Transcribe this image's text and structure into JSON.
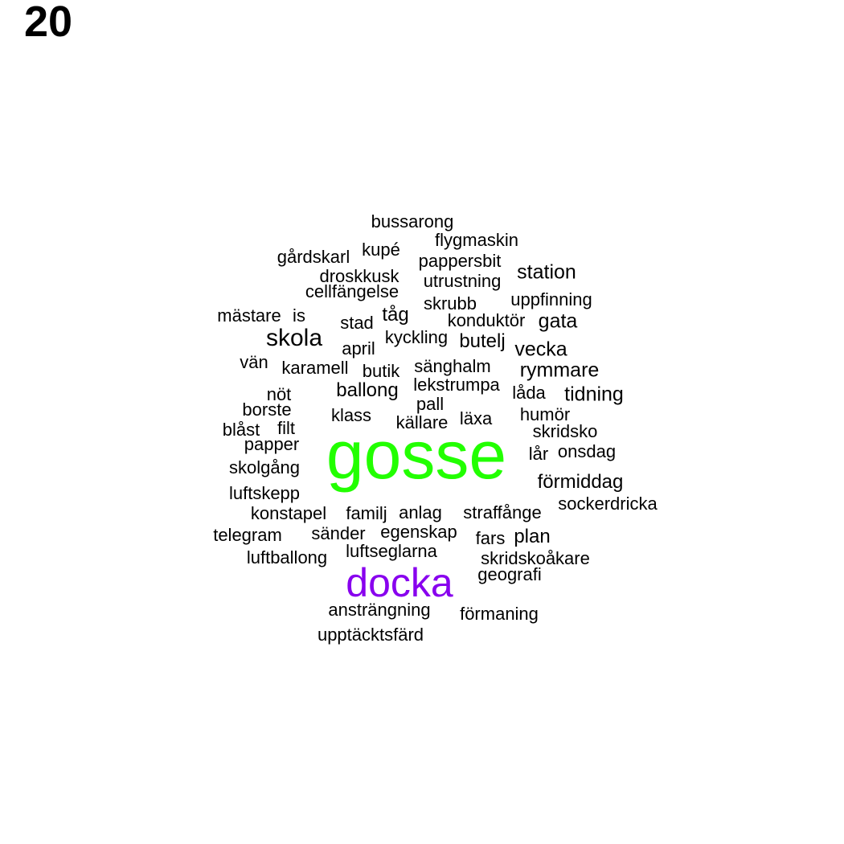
{
  "page_number": "20",
  "colors": {
    "default": "#000000",
    "highlight_primary": "#22ff00",
    "highlight_secondary": "#8800ee"
  },
  "words": [
    {
      "text": "bussarong",
      "emphasis": "normal"
    },
    {
      "text": "flygmaskin",
      "emphasis": "normal"
    },
    {
      "text": "kupé",
      "emphasis": "normal"
    },
    {
      "text": "gårdskarl",
      "emphasis": "normal"
    },
    {
      "text": "pappersbit",
      "emphasis": "normal"
    },
    {
      "text": "station",
      "emphasis": "normal"
    },
    {
      "text": "droskkusk",
      "emphasis": "normal"
    },
    {
      "text": "utrustning",
      "emphasis": "normal"
    },
    {
      "text": "cellfängelse",
      "emphasis": "normal"
    },
    {
      "text": "uppfinning",
      "emphasis": "normal"
    },
    {
      "text": "skrubb",
      "emphasis": "normal"
    },
    {
      "text": "mästare",
      "emphasis": "normal"
    },
    {
      "text": "is",
      "emphasis": "normal"
    },
    {
      "text": "tåg",
      "emphasis": "normal"
    },
    {
      "text": "konduktör",
      "emphasis": "normal"
    },
    {
      "text": "gata",
      "emphasis": "normal"
    },
    {
      "text": "stad",
      "emphasis": "normal"
    },
    {
      "text": "skola",
      "emphasis": "normal"
    },
    {
      "text": "kyckling",
      "emphasis": "normal"
    },
    {
      "text": "butelj",
      "emphasis": "normal"
    },
    {
      "text": "april",
      "emphasis": "normal"
    },
    {
      "text": "vecka",
      "emphasis": "normal"
    },
    {
      "text": "vän",
      "emphasis": "normal"
    },
    {
      "text": "karamell",
      "emphasis": "normal"
    },
    {
      "text": "butik",
      "emphasis": "normal"
    },
    {
      "text": "sänghalm",
      "emphasis": "normal"
    },
    {
      "text": "rymmare",
      "emphasis": "normal"
    },
    {
      "text": "lekstrumpa",
      "emphasis": "normal"
    },
    {
      "text": "ballong",
      "emphasis": "normal"
    },
    {
      "text": "nöt",
      "emphasis": "normal"
    },
    {
      "text": "låda",
      "emphasis": "normal"
    },
    {
      "text": "tidning",
      "emphasis": "normal"
    },
    {
      "text": "pall",
      "emphasis": "normal"
    },
    {
      "text": "borste",
      "emphasis": "normal"
    },
    {
      "text": "klass",
      "emphasis": "normal"
    },
    {
      "text": "humör",
      "emphasis": "normal"
    },
    {
      "text": "läxa",
      "emphasis": "normal"
    },
    {
      "text": "källare",
      "emphasis": "normal"
    },
    {
      "text": "blåst",
      "emphasis": "normal"
    },
    {
      "text": "filt",
      "emphasis": "normal"
    },
    {
      "text": "skridsko",
      "emphasis": "normal"
    },
    {
      "text": "papper",
      "emphasis": "normal"
    },
    {
      "text": "gosse",
      "emphasis": "primary"
    },
    {
      "text": "lår",
      "emphasis": "normal"
    },
    {
      "text": "onsdag",
      "emphasis": "normal"
    },
    {
      "text": "skolgång",
      "emphasis": "normal"
    },
    {
      "text": "förmiddag",
      "emphasis": "normal"
    },
    {
      "text": "luftskepp",
      "emphasis": "normal"
    },
    {
      "text": "sockerdricka",
      "emphasis": "normal"
    },
    {
      "text": "konstapel",
      "emphasis": "normal"
    },
    {
      "text": "familj",
      "emphasis": "normal"
    },
    {
      "text": "anlag",
      "emphasis": "normal"
    },
    {
      "text": "straffånge",
      "emphasis": "normal"
    },
    {
      "text": "telegram",
      "emphasis": "normal"
    },
    {
      "text": "sänder",
      "emphasis": "normal"
    },
    {
      "text": "egenskap",
      "emphasis": "normal"
    },
    {
      "text": "fars",
      "emphasis": "normal"
    },
    {
      "text": "plan",
      "emphasis": "normal"
    },
    {
      "text": "luftballong",
      "emphasis": "normal"
    },
    {
      "text": "luftseglarna",
      "emphasis": "normal"
    },
    {
      "text": "skridskoåkare",
      "emphasis": "normal"
    },
    {
      "text": "geografi",
      "emphasis": "normal"
    },
    {
      "text": "docka",
      "emphasis": "secondary"
    },
    {
      "text": "ansträngning",
      "emphasis": "normal"
    },
    {
      "text": "förmaning",
      "emphasis": "normal"
    },
    {
      "text": "upptäcktsfärd",
      "emphasis": "normal"
    }
  ]
}
